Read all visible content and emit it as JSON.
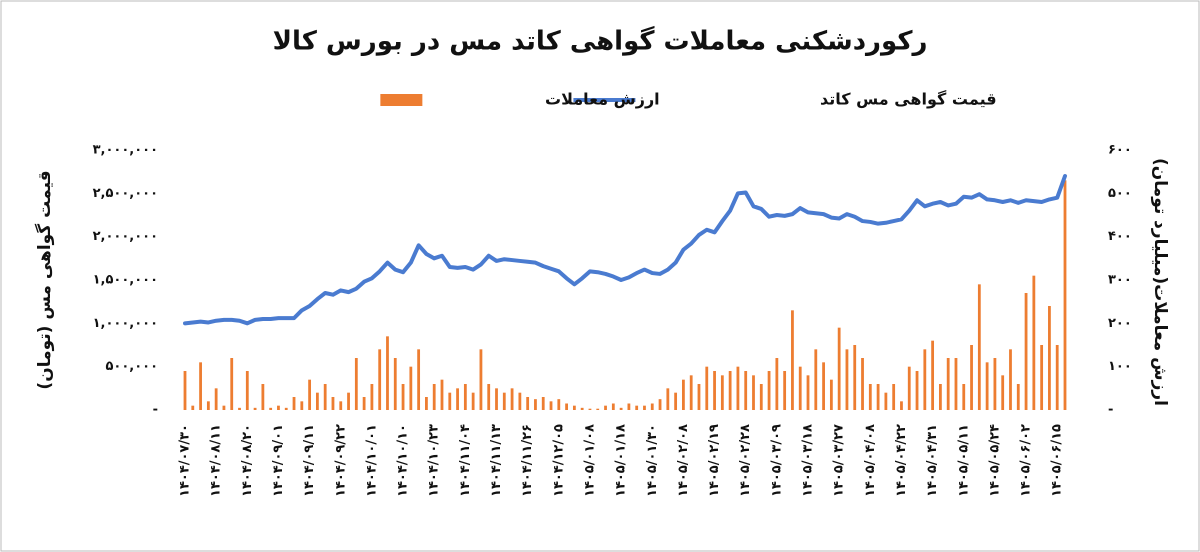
{
  "chart_data": {
    "type": "combo",
    "title": "رکوردشکنی معاملات گواهی کاتد مس در بورس کالا",
    "ylabel": "قیمت گواهی مس (تومان)",
    "y2label": "ارزش معاملات(میلیارد تومان)",
    "categories": [
      "۱۴۰۴/۰۷/۳۰",
      null,
      null,
      null,
      "۱۴۰۴/۰۸/۱۱",
      null,
      null,
      null,
      "۱۴۰۴/۰۸/۲۰",
      null,
      null,
      null,
      "۱۴۰۴/۰۹/۰۱",
      null,
      null,
      null,
      "۱۴۰۴/۰۹/۱۱",
      null,
      null,
      null,
      "۱۴۰۴/۰۹/۲۲",
      null,
      null,
      null,
      "۱۴۰۴/۱۰/۰۱",
      null,
      null,
      null,
      "۱۴۰۴/۱۰/۱۰",
      null,
      null,
      null,
      "۱۴۰۴/۱۰/۲۳",
      null,
      null,
      null,
      "۱۴۰۴/۱۱/۰۴",
      null,
      null,
      null,
      "۱۴۰۴/۱۱/۱۳",
      null,
      null,
      null,
      "۱۴۰۴/۱۱/۲۶",
      null,
      null,
      null,
      "۱۴۰۴/۱۲/۰۵",
      null,
      null,
      null,
      "۱۴۰۵/۰۱/۰۸",
      null,
      null,
      null,
      "۱۴۰۵/۰۱/۱۸",
      null,
      null,
      null,
      "۱۴۰۵/۰۱/۳۰",
      null,
      null,
      null,
      "۱۴۰۵/۰۲/۰۸",
      null,
      null,
      null,
      "۱۴۰۵/۰۲/۱۹",
      null,
      null,
      null,
      "۱۴۰۵/۰۲/۲۸",
      null,
      null,
      null,
      "۱۴۰۵/۰۳/۰۹",
      null,
      null,
      null,
      "۱۴۰۵/۰۳/۱۸",
      null,
      null,
      null,
      "۱۴۰۵/۰۳/۲۷",
      null,
      null,
      null,
      "۱۴۰۵/۰۴/۰۸",
      null,
      null,
      null,
      "۱۴۰۵/۰۴/۲۲",
      null,
      null,
      null,
      "۱۴۰۵/۰۴/۳۱",
      null,
      null,
      null,
      "۱۴۰۵/۰۵/۱۱",
      null,
      null,
      null,
      "۱۴۰۵/۰۵/۲۴",
      null,
      null,
      null,
      "۱۴۰۵/۰۶/۰۲",
      null,
      null,
      null,
      "۱۴۰۵/۰۶/۱۵",
      null
    ],
    "series": [
      {
        "name": "قیمت گواهی مس کاتد",
        "type": "line",
        "color": "#4a7bd0",
        "axis": "y",
        "values": [
          1000000,
          1010000,
          1020000,
          1010000,
          1030000,
          1040000,
          1040000,
          1030000,
          1000000,
          1040000,
          1050000,
          1050000,
          1060000,
          1060000,
          1060000,
          1150000,
          1200000,
          1280000,
          1350000,
          1330000,
          1380000,
          1360000,
          1400000,
          1480000,
          1520000,
          1600000,
          1700000,
          1620000,
          1590000,
          1700000,
          1900000,
          1800000,
          1750000,
          1780000,
          1650000,
          1640000,
          1650000,
          1620000,
          1680000,
          1780000,
          1720000,
          1740000,
          1730000,
          1720000,
          1710000,
          1700000,
          1660000,
          1630000,
          1600000,
          1520000,
          1450000,
          1520000,
          1600000,
          1590000,
          1570000,
          1540000,
          1500000,
          1530000,
          1580000,
          1620000,
          1580000,
          1570000,
          1620000,
          1700000,
          1850000,
          1920000,
          2020000,
          2080000,
          2050000,
          2180000,
          2300000,
          2500000,
          2510000,
          2350000,
          2320000,
          2230000,
          2250000,
          2240000,
          2260000,
          2330000,
          2280000,
          2270000,
          2260000,
          2220000,
          2210000,
          2260000,
          2230000,
          2180000,
          2170000,
          2150000,
          2160000,
          2180000,
          2200000,
          2300000,
          2420000,
          2350000,
          2380000,
          2400000,
          2360000,
          2380000,
          2460000,
          2450000,
          2490000,
          2430000,
          2420000,
          2400000,
          2420000,
          2390000,
          2420000,
          2410000,
          2400000,
          2430000,
          2450000,
          2700000
        ]
      },
      {
        "name": "ارزش معاملات",
        "type": "bar",
        "color": "#ed7d31",
        "axis": "y2",
        "values": [
          90,
          10,
          110,
          20,
          50,
          10,
          120,
          5,
          90,
          5,
          60,
          5,
          10,
          5,
          30,
          20,
          70,
          40,
          60,
          30,
          20,
          40,
          120,
          30,
          60,
          140,
          170,
          120,
          60,
          100,
          140,
          30,
          60,
          70,
          40,
          50,
          60,
          40,
          140,
          60,
          50,
          40,
          50,
          40,
          30,
          25,
          30,
          20,
          25,
          15,
          10,
          5,
          3,
          3,
          10,
          15,
          5,
          15,
          10,
          10,
          15,
          25,
          50,
          40,
          70,
          80,
          60,
          100,
          90,
          80,
          90,
          100,
          90,
          80,
          60,
          90,
          120,
          90,
          230,
          100,
          80,
          140,
          110,
          70,
          190,
          140,
          150,
          120,
          60,
          60,
          40,
          60,
          20,
          100,
          90,
          140,
          160,
          60,
          120,
          120,
          60,
          150,
          290,
          110,
          120,
          80,
          140,
          60,
          270,
          310,
          150,
          240,
          150,
          530
        ]
      }
    ],
    "ylim": [
      0,
      3000000
    ],
    "yticks": [
      {
        "value": 0,
        "label": "-"
      },
      {
        "value": 500000,
        "label": "۵۰۰,۰۰۰"
      },
      {
        "value": 1000000,
        "label": "۱,۰۰۰,۰۰۰"
      },
      {
        "value": 1500000,
        "label": "۱,۵۰۰,۰۰۰"
      },
      {
        "value": 2000000,
        "label": "۲,۰۰۰,۰۰۰"
      },
      {
        "value": 2500000,
        "label": "۲,۵۰۰,۰۰۰"
      },
      {
        "value": 3000000,
        "label": "۳,۰۰۰,۰۰۰"
      }
    ],
    "y2lim": [
      0,
      600
    ],
    "y2ticks": [
      {
        "value": 0,
        "label": "-"
      },
      {
        "value": 100,
        "label": "۱۰۰"
      },
      {
        "value": 200,
        "label": "۲۰۰"
      },
      {
        "value": 300,
        "label": "۳۰۰"
      },
      {
        "value": 400,
        "label": "۴۰۰"
      },
      {
        "value": 500,
        "label": "۵۰۰"
      },
      {
        "value": 600,
        "label": "۶۰۰"
      }
    ],
    "grid": false
  }
}
